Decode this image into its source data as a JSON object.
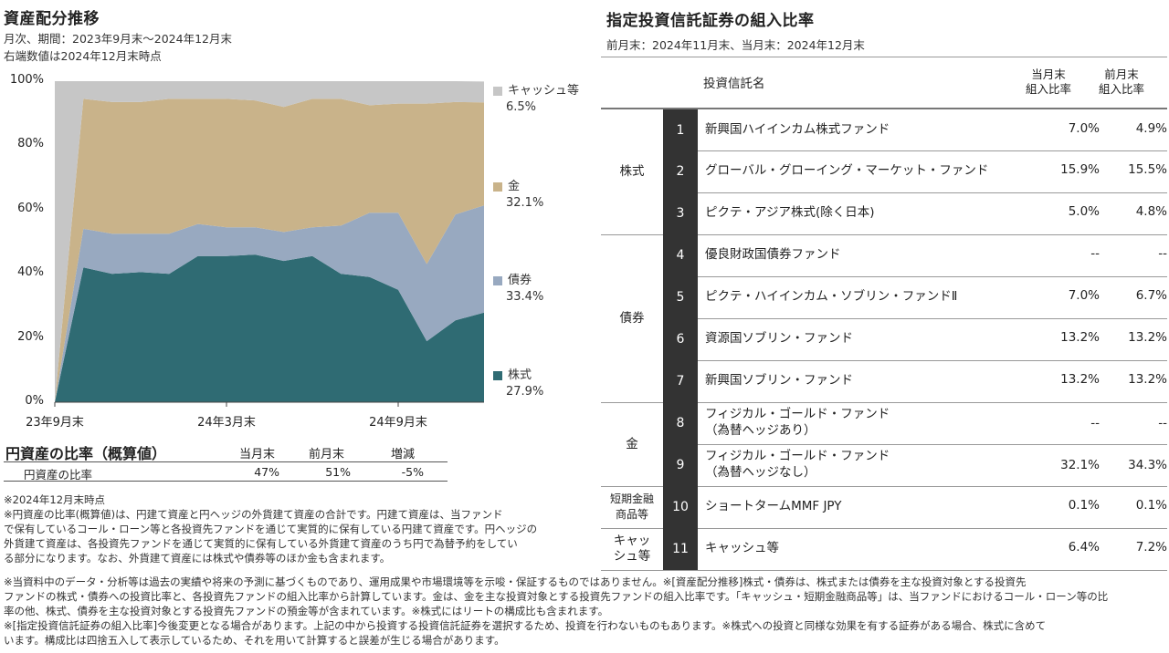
{
  "left": {
    "title": "資産配分推移",
    "subtitle1": "月次、期間：2023年9月末～2024年12月末",
    "subtitle2": "右端数値は2024年12月末時点"
  },
  "chart_data": {
    "type": "area",
    "stacked": true,
    "x": [
      "23年9月末",
      "23年10月末",
      "23年11月末",
      "23年12月末",
      "24年1月末",
      "24年2月末",
      "24年3月末",
      "24年4月末",
      "24年5月末",
      "24年6月末",
      "24年7月末",
      "24年8月末",
      "24年9月末",
      "24年10月末",
      "24年11月末",
      "24年12月末"
    ],
    "x_tick_labels": [
      "23年9月末",
      "24年3月末",
      "24年9月末"
    ],
    "y_tick_labels": [
      "0%",
      "20%",
      "40%",
      "60%",
      "80%",
      "100%"
    ],
    "ylim": [
      0,
      100
    ],
    "series": [
      {
        "name": "株式",
        "color": "#2f6b73",
        "values": [
          0,
          42,
          40,
          40.5,
          40,
          45.5,
          45.5,
          46,
          44,
          45.5,
          40,
          39,
          35,
          19,
          25.5,
          27.9
        ]
      },
      {
        "name": "債券",
        "color": "#98a9c0",
        "values": [
          0,
          12,
          12.5,
          12,
          12.5,
          10,
          9,
          8.5,
          9,
          9,
          15,
          20,
          24,
          24,
          33,
          33.4
        ]
      },
      {
        "name": "金",
        "color": "#c9b38a",
        "values": [
          0,
          40.5,
          41,
          41,
          42,
          39,
          40,
          39.5,
          39,
          40,
          39.5,
          33.5,
          34,
          50,
          35,
          32.1
        ]
      },
      {
        "name": "キャッシュ等",
        "color": "#c6c6c6",
        "values": [
          100,
          5.5,
          6.5,
          6.5,
          5.5,
          5.5,
          5.5,
          6,
          8,
          5.5,
          5.5,
          7.5,
          7,
          7,
          6.5,
          6.5
        ]
      }
    ],
    "legend": [
      {
        "name": "キャッシュ等",
        "value": "6.5%"
      },
      {
        "name": "金",
        "value": "32.1%"
      },
      {
        "name": "債券",
        "value": "33.4%"
      },
      {
        "name": "株式",
        "value": "27.9%"
      }
    ]
  },
  "yen_table": {
    "title": "円資産の比率（概算値）",
    "col_cur": "当月末",
    "col_prev": "前月末",
    "col_diff": "増減",
    "row_label": "円資産の比率",
    "cur": "47%",
    "prev": "51%",
    "diff": "-5%"
  },
  "left_notes": [
    "※2024年12月末時点",
    "※円資産の比率(概算値)は、円建て資産と円ヘッジの外貨建て資産の合計です。円建て資産は、当ファンド",
    "で保有しているコール・ローン等と各投資先ファンドを通じて実質的に保有している円建て資産です。円ヘッジの",
    "外貨建て資産は、各投資先ファンドを通じて実質的に保有している外貨建て資産のうち円で為替予約をしてい",
    "る部分になります。なお、外貨建て資産には株式や債券等のほか金も含まれます。"
  ],
  "right": {
    "title": "指定投資信託証券の組入比率",
    "subtitle": "前月末：2024年11月末、当月末：2024年12月末",
    "head_name": "投資信託名",
    "head_cur1": "当月末",
    "head_cur2": "組入比率",
    "head_prev1": "前月末",
    "head_prev2": "組入比率"
  },
  "categories": [
    {
      "label": "株式"
    },
    {
      "label": "債券"
    },
    {
      "label": "金"
    },
    {
      "label": "短期金融商品等"
    },
    {
      "label": "キャッシュ等"
    }
  ],
  "funds": [
    {
      "no": "1",
      "name": "新興国ハイインカム株式ファンド",
      "name2": "",
      "cur": "7.0%",
      "prev": "4.9%"
    },
    {
      "no": "2",
      "name": "グローバル・グローイング・マーケット・ファンド",
      "name2": "",
      "cur": "15.9%",
      "prev": "15.5%"
    },
    {
      "no": "3",
      "name": "ピクテ・アジア株式(除く日本)",
      "name2": "",
      "cur": "5.0%",
      "prev": "4.8%"
    },
    {
      "no": "4",
      "name": "優良財政国債券ファンド",
      "name2": "",
      "cur": "--",
      "prev": "--"
    },
    {
      "no": "5",
      "name": "ピクテ・ハイインカム・ソブリン・ファンドⅡ",
      "name2": "",
      "cur": "7.0%",
      "prev": "6.7%"
    },
    {
      "no": "6",
      "name": "資源国ソブリン・ファンド",
      "name2": "",
      "cur": "13.2%",
      "prev": "13.2%"
    },
    {
      "no": "7",
      "name": "新興国ソブリン・ファンド",
      "name2": "",
      "cur": "13.2%",
      "prev": "13.2%"
    },
    {
      "no": "8",
      "name": "フィジカル・ゴールド・ファンド",
      "name2": "（為替ヘッジあり）",
      "cur": "--",
      "prev": "--"
    },
    {
      "no": "9",
      "name": "フィジカル・ゴールド・ファンド",
      "name2": "（為替ヘッジなし）",
      "cur": "32.1%",
      "prev": "34.3%"
    },
    {
      "no": "10",
      "name": "ショートタームMMF JPY",
      "name2": "",
      "cur": "0.1%",
      "prev": "0.1%"
    },
    {
      "no": "11",
      "name": "キャッシュ等",
      "name2": "",
      "cur": "6.4%",
      "prev": "7.2%"
    }
  ],
  "bottom_notes": [
    "※当資料中のデータ・分析等は過去の実績や将来の予測に基づくものであり、運用成果や市場環境等を示唆・保証するものではありません。※[資産配分推移]株式・債券は、株式または債券を主な投資対象とする投資先",
    "ファンドの株式・債券への投資比率と、各投資先ファンドの組入比率から計算しています。金は、金を主な投資対象とする投資先ファンドの組入比率です。「キャッシュ・短期金融商品等」は、当ファンドにおけるコール・ローン等の比",
    "率の他、株式、債券を主な投資対象とする投資先ファンドの預金等が含まれています。※株式にはリートの構成比も含まれます。",
    "※[指定投資信託証券の組入比率]今後変更となる場合があります。上記の中から投資する投資信託証券を選択するため、投資を行わないものもあります。※株式への投資と同様な効果を有する証券がある場合、株式に含めて",
    "います。構成比は四捨五入して表示しているため、それを用いて計算すると誤差が生じる場合があります。"
  ]
}
